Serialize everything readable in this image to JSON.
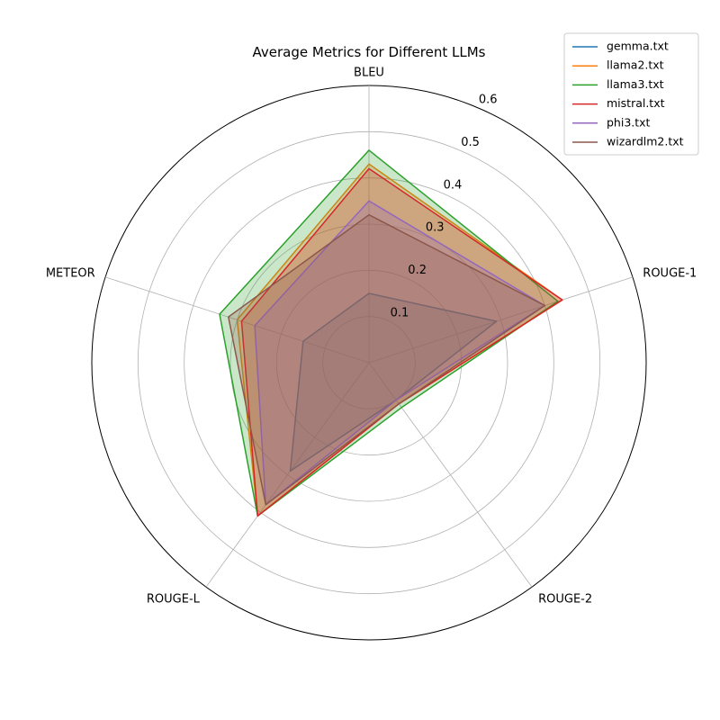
{
  "chart_data": {
    "type": "radar",
    "title": "Average Metrics for Different LLMs",
    "axes": [
      "BLEU",
      "ROUGE-1",
      "ROUGE-2",
      "ROUGE-L",
      "METEOR"
    ],
    "rlim": [
      0,
      0.6
    ],
    "rticks": [
      0.1,
      0.2,
      0.3,
      0.4,
      0.5,
      0.6
    ],
    "rtick_labels": [
      "0.1",
      "0.2",
      "0.3",
      "0.4",
      "0.5",
      "0.6"
    ],
    "grid": true,
    "legend_position": "top-right",
    "series": [
      {
        "name": "gemma.txt",
        "color": "#1f77b4",
        "values": [
          0.15,
          0.29,
          0.1,
          0.29,
          0.15
        ]
      },
      {
        "name": "llama2.txt",
        "color": "#ff7f0e",
        "values": [
          0.43,
          0.44,
          0.11,
          0.41,
          0.3
        ]
      },
      {
        "name": "llama3.txt",
        "color": "#2ca02c",
        "values": [
          0.46,
          0.43,
          0.12,
          0.41,
          0.34
        ]
      },
      {
        "name": "mistral.txt",
        "color": "#d62728",
        "values": [
          0.42,
          0.44,
          0.11,
          0.41,
          0.29
        ]
      },
      {
        "name": "phi3.txt",
        "color": "#9467bd",
        "values": [
          0.35,
          0.4,
          0.1,
          0.38,
          0.26
        ]
      },
      {
        "name": "wizardlm2.txt",
        "color": "#8c564b",
        "values": [
          0.32,
          0.4,
          0.11,
          0.38,
          0.32
        ]
      }
    ]
  }
}
